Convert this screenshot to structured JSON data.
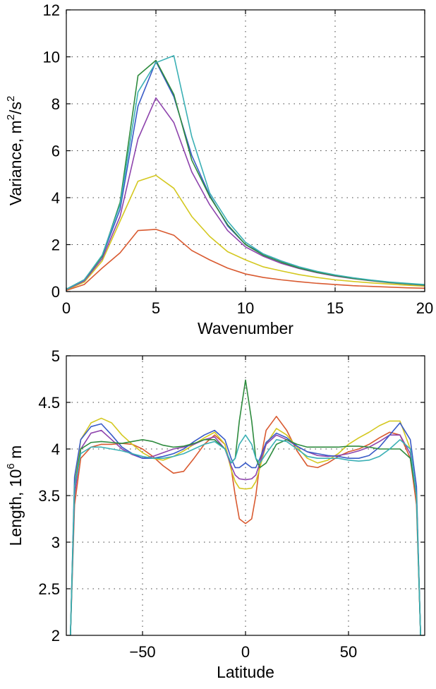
{
  "chart_data": [
    {
      "type": "line",
      "title": "",
      "xlabel": "Wavenumber",
      "ylabel": "Variance, m²/s²",
      "ylabel_parts": [
        "Variance, m",
        "2",
        "/s",
        "2"
      ],
      "xlim": [
        0,
        20
      ],
      "ylim": [
        0,
        12
      ],
      "xticks": [
        0,
        5,
        10,
        15,
        20
      ],
      "yticks": [
        0,
        2,
        4,
        6,
        8,
        10,
        12
      ],
      "grid": true,
      "x": [
        0,
        1,
        2,
        3,
        4,
        5,
        6,
        7,
        8,
        9,
        10,
        11,
        12,
        13,
        14,
        15,
        16,
        17,
        18,
        19,
        20
      ],
      "series": [
        {
          "color": "#d95a30",
          "values": [
            0.05,
            0.3,
            1.0,
            1.65,
            2.6,
            2.65,
            2.4,
            1.75,
            1.35,
            1.0,
            0.75,
            0.6,
            0.5,
            0.42,
            0.35,
            0.3,
            0.25,
            0.22,
            0.19,
            0.16,
            0.14
          ]
        },
        {
          "color": "#d4c820",
          "values": [
            0.07,
            0.4,
            1.3,
            3.0,
            4.7,
            4.95,
            4.4,
            3.2,
            2.35,
            1.7,
            1.35,
            1.05,
            0.88,
            0.72,
            0.6,
            0.5,
            0.43,
            0.37,
            0.32,
            0.27,
            0.23
          ]
        },
        {
          "color": "#8e44ad",
          "values": [
            0.08,
            0.45,
            1.4,
            3.2,
            6.5,
            8.25,
            7.2,
            5.1,
            3.7,
            2.6,
            1.9,
            1.5,
            1.2,
            0.98,
            0.8,
            0.66,
            0.55,
            0.46,
            0.38,
            0.32,
            0.27
          ]
        },
        {
          "color": "#3a5bc7",
          "values": [
            0.1,
            0.5,
            1.5,
            3.5,
            7.9,
            9.8,
            8.3,
            5.8,
            4.1,
            2.8,
            2.0,
            1.6,
            1.3,
            1.05,
            0.85,
            0.7,
            0.58,
            0.48,
            0.4,
            0.34,
            0.28
          ]
        },
        {
          "color": "#2e8b3e",
          "values": [
            0.1,
            0.5,
            1.5,
            3.8,
            9.2,
            9.85,
            8.4,
            5.6,
            4.05,
            2.85,
            2.0,
            1.55,
            1.25,
            1.0,
            0.82,
            0.68,
            0.56,
            0.47,
            0.39,
            0.33,
            0.28
          ]
        },
        {
          "color": "#3bb0b5",
          "values": [
            0.1,
            0.5,
            1.55,
            3.7,
            8.5,
            9.75,
            10.05,
            6.6,
            4.2,
            3.0,
            2.1,
            1.6,
            1.3,
            1.05,
            0.86,
            0.71,
            0.59,
            0.49,
            0.41,
            0.35,
            0.3
          ]
        }
      ]
    },
    {
      "type": "line",
      "title": "",
      "xlabel": "Latitude",
      "ylabel": "Length, 10⁶ m",
      "ylabel_parts": [
        "Length, 10",
        "6",
        " m"
      ],
      "xlim": [
        -87,
        87
      ],
      "ylim": [
        2,
        5
      ],
      "xticks": [
        -50,
        0,
        50
      ],
      "yticks": [
        2,
        2.5,
        3,
        3.5,
        4,
        4.5,
        5
      ],
      "xticklabels": [
        "−50",
        "0",
        "50"
      ],
      "yticklabels": [
        "2",
        "2.5",
        "3",
        "3.5",
        "4",
        "4.5",
        "5"
      ],
      "grid": true,
      "x": [
        -85,
        -83,
        -80,
        -75,
        -70,
        -65,
        -60,
        -55,
        -50,
        -45,
        -40,
        -35,
        -30,
        -25,
        -20,
        -15,
        -10,
        -7,
        -5,
        -3,
        0,
        3,
        5,
        7,
        10,
        15,
        20,
        25,
        30,
        35,
        40,
        45,
        50,
        55,
        60,
        65,
        70,
        75,
        80,
        83,
        85
      ],
      "series": [
        {
          "color": "#d95a30",
          "values": [
            2.0,
            3.4,
            3.9,
            4.02,
            4.05,
            4.05,
            4.06,
            4.05,
            4.0,
            3.92,
            3.82,
            3.74,
            3.76,
            3.9,
            4.05,
            4.15,
            4.05,
            3.8,
            3.5,
            3.25,
            3.2,
            3.25,
            3.5,
            3.85,
            4.2,
            4.35,
            4.2,
            3.98,
            3.82,
            3.8,
            3.85,
            3.92,
            3.97,
            4.0,
            4.05,
            4.12,
            4.18,
            4.15,
            3.9,
            3.4,
            2.0
          ]
        },
        {
          "color": "#d4c820",
          "values": [
            2.0,
            3.6,
            4.1,
            4.28,
            4.33,
            4.28,
            4.15,
            4.05,
            3.96,
            3.9,
            3.88,
            3.92,
            3.98,
            4.05,
            4.12,
            4.18,
            4.05,
            3.78,
            3.65,
            3.58,
            3.57,
            3.58,
            3.65,
            3.8,
            4.05,
            4.22,
            4.15,
            4.02,
            3.9,
            3.85,
            3.88,
            3.95,
            4.05,
            4.12,
            4.18,
            4.25,
            4.3,
            4.3,
            4.0,
            3.5,
            2.0
          ]
        },
        {
          "color": "#8e44ad",
          "values": [
            2.0,
            3.5,
            4.0,
            4.17,
            4.2,
            4.1,
            4.0,
            3.94,
            3.9,
            3.92,
            3.96,
            4.0,
            4.02,
            4.05,
            4.1,
            4.13,
            4.0,
            3.82,
            3.72,
            3.68,
            3.67,
            3.68,
            3.72,
            3.85,
            4.05,
            4.15,
            4.1,
            4.03,
            3.97,
            3.93,
            3.92,
            3.93,
            3.95,
            3.98,
            4.02,
            4.08,
            4.15,
            4.15,
            3.95,
            3.5,
            2.0
          ]
        },
        {
          "color": "#3a5bc7",
          "values": [
            2.0,
            3.7,
            4.1,
            4.24,
            4.27,
            4.15,
            4.02,
            3.95,
            3.9,
            3.9,
            3.92,
            3.95,
            4.0,
            4.08,
            4.15,
            4.2,
            4.1,
            3.9,
            3.8,
            3.8,
            3.85,
            3.8,
            3.8,
            3.9,
            4.07,
            4.17,
            4.12,
            4.03,
            3.97,
            3.95,
            3.93,
            3.92,
            3.9,
            3.9,
            3.93,
            4.02,
            4.15,
            4.28,
            4.1,
            3.6,
            2.0
          ]
        },
        {
          "color": "#2e8b3e",
          "values": [
            2.0,
            3.6,
            4.0,
            4.07,
            4.08,
            4.07,
            4.06,
            4.08,
            4.1,
            4.08,
            4.04,
            4.02,
            4.03,
            4.06,
            4.1,
            4.1,
            4.0,
            3.85,
            3.9,
            4.3,
            4.74,
            4.3,
            3.9,
            3.8,
            3.85,
            4.05,
            4.1,
            4.05,
            4.02,
            4.02,
            4.02,
            4.02,
            4.03,
            4.03,
            4.02,
            4.0,
            4.0,
            4.0,
            3.9,
            3.5,
            2.0
          ]
        },
        {
          "color": "#3bb0b5",
          "values": [
            2.0,
            3.6,
            3.95,
            4.02,
            4.02,
            4.0,
            3.98,
            3.95,
            3.92,
            3.9,
            3.9,
            3.92,
            3.95,
            4.0,
            4.05,
            4.08,
            4.0,
            3.85,
            3.9,
            4.05,
            4.15,
            4.05,
            3.9,
            3.85,
            3.95,
            4.1,
            4.08,
            4.0,
            3.92,
            3.9,
            3.9,
            3.9,
            3.88,
            3.87,
            3.88,
            3.92,
            4.0,
            4.1,
            4.0,
            3.5,
            2.0
          ]
        }
      ]
    }
  ]
}
